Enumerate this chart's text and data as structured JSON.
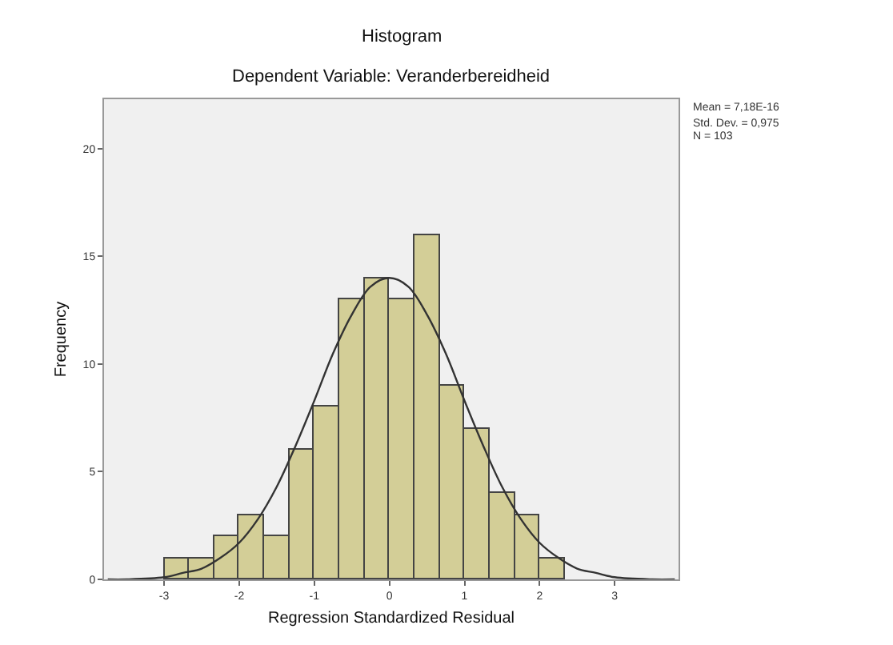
{
  "chart_data": {
    "type": "histogram",
    "title": "Histogram",
    "subtitle": "Dependent Variable: Veranderbereidheid",
    "xlabel": "Regression Standardized Residual",
    "ylabel": "Frequency",
    "bins": [
      -3,
      -2.667,
      -2.333,
      -2,
      -1.667,
      -1.333,
      -1,
      -0.667,
      -0.333,
      0,
      0.333,
      0.667,
      1,
      1.333,
      1.667,
      2,
      2.333
    ],
    "values": [
      1,
      1,
      2,
      3,
      2,
      6,
      8,
      13,
      14,
      13,
      16,
      9,
      7,
      4,
      3,
      1
    ],
    "color": "#d3ce97",
    "series": [
      {
        "type": "line",
        "color": "#333333",
        "x": [
          -3.75,
          -3.5,
          -3,
          -2.75,
          -2.5,
          -2.25,
          -2,
          -1.75,
          -1.5,
          -1.25,
          -1,
          -0.75,
          -0.5,
          -0.25,
          0,
          0.25,
          0.5,
          0.75,
          1,
          1.25,
          1.5,
          1.75,
          2,
          2.25,
          2.5,
          2.75,
          3,
          3.5,
          3.8
        ],
        "values": [
          0,
          0,
          0.1,
          0.3,
          0.5,
          1,
          1.7,
          2.8,
          4.3,
          6.2,
          8.3,
          10.5,
          12.3,
          13.6,
          14,
          13.6,
          12.3,
          10.5,
          8.3,
          6.2,
          4.3,
          2.8,
          1.7,
          1,
          0.5,
          0.3,
          0.1,
          0,
          0
        ]
      }
    ],
    "xlim": [
      -3.8,
      3.85
    ],
    "xticks": [
      -3,
      -2,
      -1,
      0,
      1,
      2,
      3
    ],
    "ylim": [
      0,
      22.3
    ],
    "yticks": [
      0,
      5,
      10,
      15,
      20
    ],
    "grid": false,
    "annotations": [
      "Mean = 7,18E-16",
      "Std. Dev. = 0,975",
      "N = 103"
    ]
  }
}
